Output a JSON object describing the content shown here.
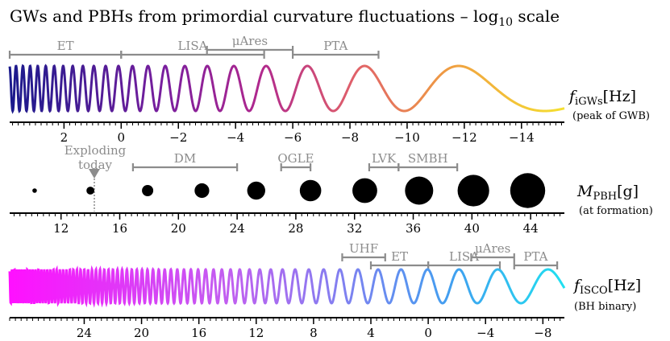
{
  "title": "GWs and PBHs from primordial curvature fluctuations – log",
  "title_sub": "10",
  "title_suffix": " scale",
  "colors": {
    "bar_gray": "#8c8c8c",
    "wave_top_gradient": [
      "#1a1a8c",
      "#7a1e9e",
      "#b0288e",
      "#e0606a",
      "#f0a040",
      "#f5e030"
    ],
    "wave_bottom_gradient": [
      "#ff10ff",
      "#c060f0",
      "#8080f0",
      "#40a0f0",
      "#20e0f0"
    ]
  },
  "panels": [
    {
      "id": "igw",
      "axis_title_var": "f",
      "axis_title_sub": "iGWs",
      "axis_title_unit": "[Hz]",
      "axis_subtitle": "(peak of GWB)",
      "axis_range": [
        3.9,
        -15.5
      ],
      "tick_labels": [
        2,
        0,
        -2,
        -4,
        -6,
        -8,
        -10,
        -12,
        -14
      ],
      "minor_step": 0.2,
      "ranges": [
        {
          "label": "ET",
          "from": 3.9,
          "to": 0.0
        },
        {
          "label": "LISA",
          "from": 0.0,
          "to": -5.0
        },
        {
          "label": "μAres",
          "from": -3.0,
          "to": -6.0
        },
        {
          "label": "PTA",
          "from": -6.0,
          "to": -9.0
        }
      ]
    },
    {
      "id": "pbh",
      "axis_title_var": "M",
      "axis_title_sub": "PBH",
      "axis_title_unit": "[g]",
      "axis_subtitle": "(at formation)",
      "axis_range": [
        8.5,
        46.3
      ],
      "tick_labels": [
        12,
        16,
        20,
        24,
        28,
        32,
        36,
        40,
        44
      ],
      "minor_step": 0.4,
      "marker_label": [
        "Exploding",
        "today"
      ],
      "marker_value": 14.9,
      "ranges": [
        {
          "label": "DM",
          "from": 16.9,
          "to": 24.0
        },
        {
          "label": "OGLE",
          "from": 27.0,
          "to": 29.0
        },
        {
          "label": "LVK",
          "from": 33.0,
          "to": 35.0
        },
        {
          "label": "SMBH",
          "from": 35.0,
          "to": 39.0
        }
      ],
      "dot_masses": [
        10.2,
        14.0,
        17.9,
        21.6,
        25.3,
        29.0,
        32.7,
        36.4,
        40.1,
        43.8
      ]
    },
    {
      "id": "isco",
      "axis_title_var": "f",
      "axis_title_sub": "ISCO",
      "axis_title_unit": "[Hz]",
      "axis_subtitle": "(BH binary)",
      "axis_range": [
        29.2,
        -9.5
      ],
      "tick_labels": [
        24,
        20,
        16,
        12,
        8,
        4,
        0,
        -4,
        -8
      ],
      "minor_step": 0.4,
      "ranges": [
        {
          "label": "UHF",
          "from": 6.0,
          "to": 3.0
        },
        {
          "label": "ET",
          "from": 4.0,
          "to": 0.0
        },
        {
          "label": "LISA",
          "from": 0.0,
          "to": -5.0
        },
        {
          "label": "μAres",
          "from": -3.0,
          "to": -6.0
        },
        {
          "label": "PTA",
          "from": -6.0,
          "to": -9.0
        }
      ]
    }
  ]
}
